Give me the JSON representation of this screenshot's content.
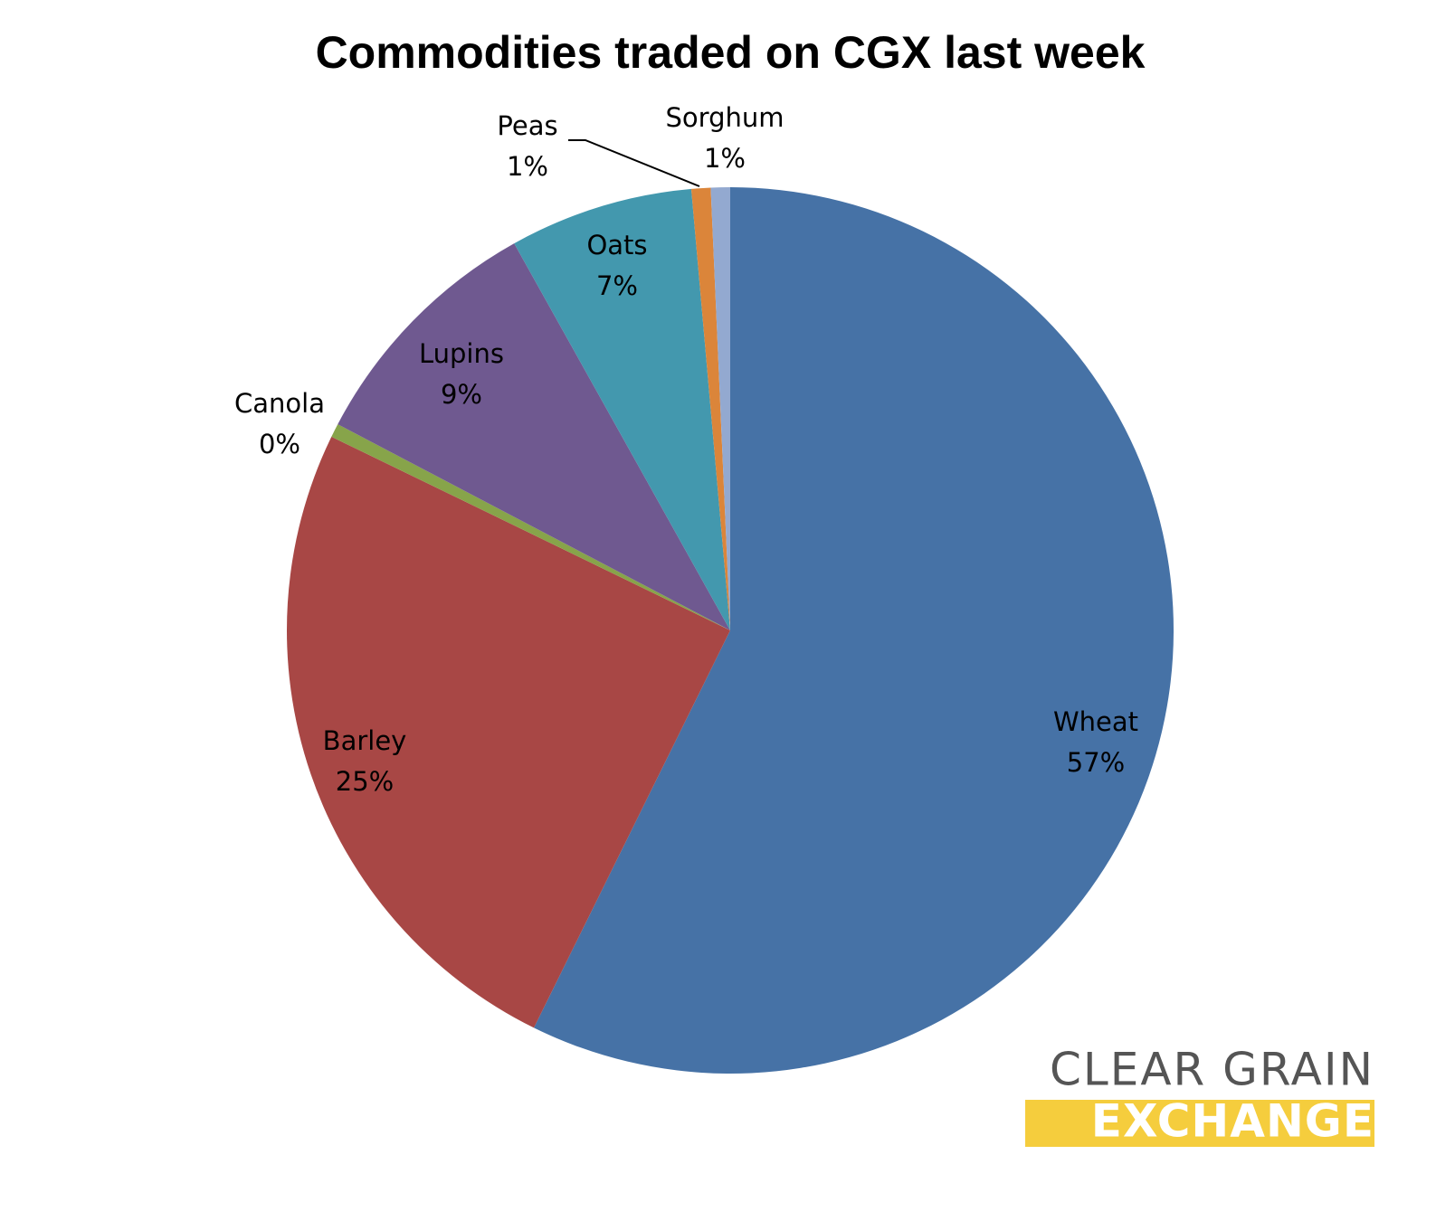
{
  "chart_data": {
    "type": "pie",
    "title": "Commodities traded on CGX last week",
    "categories": [
      "Wheat",
      "Barley",
      "Canola",
      "Lupins",
      "Oats",
      "Peas",
      "Sorghum"
    ],
    "values": [
      57.3,
      24.9,
      0.5,
      9.2,
      6.7,
      0.7,
      0.7
    ],
    "value_labels": [
      "57%",
      "25%",
      "0%",
      "9%",
      "7%",
      "1%",
      "1%"
    ],
    "colors": [
      "#4672a6",
      "#a84745",
      "#87a44a",
      "#6f5990",
      "#4398ae",
      "#db853a",
      "#93a9d0"
    ]
  },
  "logo": {
    "line1": "CLEAR GRAIN",
    "line2": "EXCHANGE"
  }
}
